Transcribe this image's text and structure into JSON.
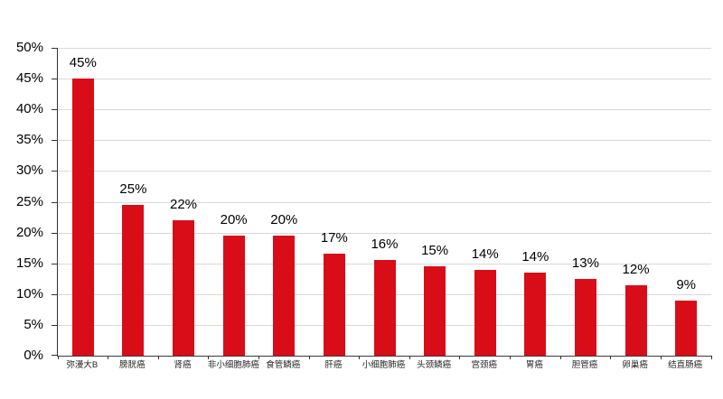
{
  "chart_data": {
    "type": "bar",
    "title": "",
    "xlabel": "",
    "ylabel": "",
    "categories": [
      "弥漫大B",
      "膀胱癌",
      "肾癌",
      "非小细胞肺癌",
      "食管鳞癌",
      "肝癌",
      "小细胞肺癌",
      "头颈鳞癌",
      "宫颈癌",
      "胃癌",
      "胆管癌",
      "卵巢癌",
      "结直肠癌"
    ],
    "values": [
      45,
      25,
      22,
      20,
      20,
      17,
      16,
      15,
      14,
      14,
      13,
      12,
      9
    ],
    "data_labels": [
      "45%",
      "25%",
      "22%",
      "20%",
      "20%",
      "17%",
      "16%",
      "15%",
      "14%",
      "14%",
      "13%",
      "12%",
      "9%"
    ],
    "rendered_bar_heights_pct": [
      45,
      24.5,
      22,
      19.5,
      19.5,
      16.5,
      15.5,
      14.5,
      14,
      13.5,
      12.5,
      11.5,
      9
    ],
    "ylim": [
      0,
      50
    ],
    "ytick_step": 5,
    "ytick_labels": [
      "0%",
      "5%",
      "10%",
      "15%",
      "20%",
      "25%",
      "30%",
      "35%",
      "40%",
      "45%",
      "50%"
    ],
    "grid": "horizontal-gridlines",
    "legend": "none",
    "colors": {
      "bar": "#D90D18",
      "gridline": "#D9D9D9",
      "axis": "#3B3B3B",
      "text": "#000000",
      "background": "#FFFFFF"
    }
  }
}
